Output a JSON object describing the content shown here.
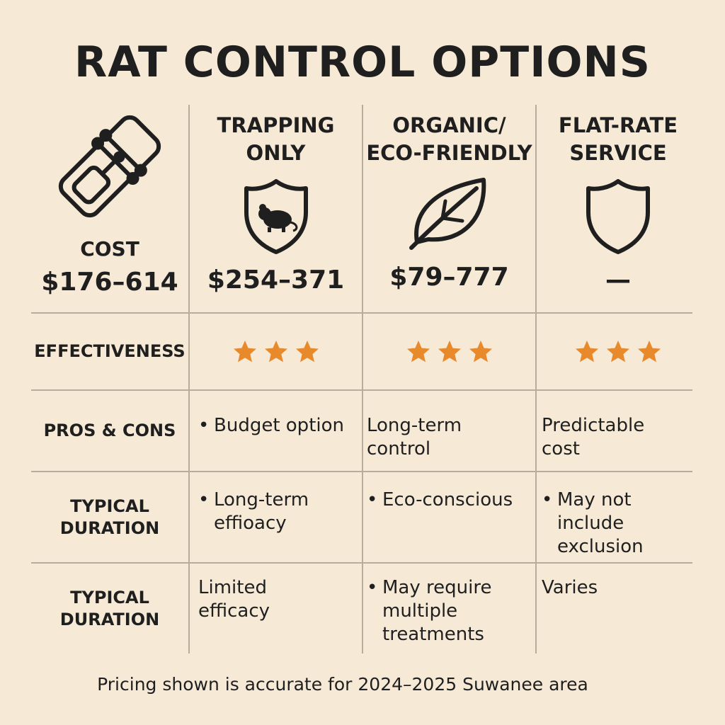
{
  "title": "RAT CONTROL OPTIONS",
  "columns": [
    {
      "heading_line1": "TRAPPING",
      "heading_line2": "ONLY",
      "icon": "rat-shield-icon",
      "price": "$254–371"
    },
    {
      "heading_line1": "ORGANIC/",
      "heading_line2": "ECO-FRIENDLY",
      "icon": "leaf-icon",
      "price": "$79–777"
    },
    {
      "heading_line1": "FLAT-RATE",
      "heading_line2": "SERVICE",
      "icon": "shield-icon",
      "price": "—"
    }
  ],
  "cost": {
    "label": "COST",
    "price": "$176–614",
    "icon": "rat-trap-icon"
  },
  "effectiveness": {
    "label": "EFFECTIVENESS",
    "stars": [
      3,
      3,
      3
    ],
    "star_color": "#e8892b"
  },
  "pros_cons": {
    "label": "PROS & CONS",
    "cells": [
      {
        "bullet": true,
        "lines": [
          "Budget option"
        ]
      },
      {
        "bullet": false,
        "lines": [
          "Long-term",
          "control"
        ]
      },
      {
        "bullet": false,
        "lines": [
          "Predictable",
          "cost"
        ]
      }
    ]
  },
  "duration_1": {
    "label_line1": "TYPICAL",
    "label_line2": "DURATION",
    "cells": [
      {
        "bullet": true,
        "lines": [
          "Long-term",
          "effioacy"
        ]
      },
      {
        "bullet": true,
        "lines": [
          "Eco-conscious"
        ]
      },
      {
        "bullet": true,
        "lines": [
          "May not",
          "include",
          "exclusion"
        ]
      }
    ]
  },
  "duration_2": {
    "label_line1": "TYPICAL",
    "label_line2": "DURATION",
    "cells": [
      {
        "bullet": false,
        "lines": [
          "Limited",
          "efficacy"
        ]
      },
      {
        "bullet": true,
        "lines": [
          "May require",
          "multiple",
          "treatments"
        ]
      },
      {
        "bullet": false,
        "lines": [
          "Varies"
        ]
      }
    ]
  },
  "footer": "Pricing shown is accurate for 2024–2025 Suwanee area",
  "colors": {
    "background": "#f6ead7",
    "text": "#1f1f1f",
    "grid": "#b8ad9c",
    "star": "#e8892b"
  }
}
